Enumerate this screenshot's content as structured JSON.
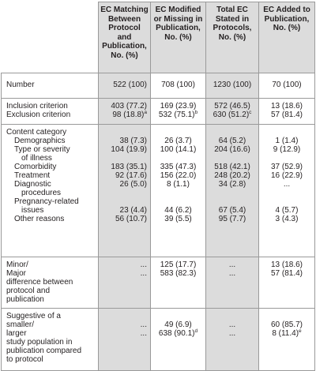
{
  "headers": [
    "",
    "EC Matching Between Protocol and Publication, No. (%)",
    "EC Modified or Missing in Publication, No. (%)",
    "Total EC Stated in Protocols, No. (%)",
    "EC Added to Publication, No. (%)"
  ],
  "rows": {
    "number": {
      "label": "Number",
      "c1": "522 (100)",
      "c2": "708 (100)",
      "c3": "1230 (100)",
      "c4": "70 (100)"
    },
    "criteria": {
      "inclusion": {
        "label": "Inclusion criterion",
        "c1": "403 (77.2)",
        "c2": "169 (23.9)",
        "c3": "572 (46.5)",
        "c4": "13 (18.6)"
      },
      "exclusion": {
        "label": "Exclusion criterion",
        "c1": "98 (18.8)",
        "c1_sup": "a",
        "c2": "532 (75.1)",
        "c2_sup": "b",
        "c3": "630 (51.2)",
        "c3_sup": "c",
        "c4": "57 (81.4)"
      }
    },
    "content": {
      "heading": "Content category",
      "demographics": {
        "label": "Demographics",
        "c1": "38 (7.3)",
        "c2": "26 (3.7)",
        "c3": "64 (5.2)",
        "c4": "1 (1.4)"
      },
      "severity": {
        "label1": "Type or severity",
        "label2": "of illness",
        "c1": "104 (19.9)",
        "c2": "100 (14.1)",
        "c3": "204 (16.6)",
        "c4": "9 (12.9)"
      },
      "comorbidity": {
        "label": "Comorbidity",
        "c1": "183 (35.1)",
        "c2": "335 (47.3)",
        "c3": "518 (42.1)",
        "c4": "37 (52.9)"
      },
      "treatment": {
        "label": "Treatment",
        "c1": "92 (17.6)",
        "c2": "156 (22.0)",
        "c3": "248 (20.2)",
        "c4": "16 (22.9)"
      },
      "diagnostic": {
        "label1": "Diagnostic",
        "label2": "procedures",
        "c1": "26 (5.0)",
        "c2": "8 (1.1)",
        "c3": "34 (2.8)",
        "c4": "..."
      },
      "pregnancy": {
        "label1": "Pregnancy-related",
        "label2": "issues",
        "c1": "23 (4.4)",
        "c2": "44 (6.2)",
        "c3": "67 (5.4)",
        "c4": "4 (5.7)"
      },
      "other": {
        "label": "Other reasons",
        "c1": "56 (10.7)",
        "c2": "39 (5.5)",
        "c3": "95 (7.7)",
        "c4": "3 (4.3)"
      }
    },
    "minor_major": {
      "label_lines": [
        "Minor/",
        "Major",
        "difference between",
        "protocol and",
        "publication"
      ],
      "minor": {
        "c1": "...",
        "c2": "125 (17.7)",
        "c3": "...",
        "c4": "13 (18.6)"
      },
      "major": {
        "c1": "...",
        "c2": "583 (82.3)",
        "c3": "...",
        "c4": "57 (81.4)"
      }
    },
    "suggestive": {
      "label_lines": [
        "Suggestive of a",
        "smaller/",
        "larger",
        "study population in",
        "publication compared",
        "to protocol"
      ],
      "smaller": {
        "c1": "...",
        "c2": "49 (6.9)",
        "c3": "...",
        "c4": "60 (85.7)"
      },
      "larger": {
        "c1": "...",
        "c2": "638 (90.1)",
        "c2_sup": "d",
        "c3": "...",
        "c4": "8 (11.4)",
        "c4_sup": "e"
      }
    }
  }
}
